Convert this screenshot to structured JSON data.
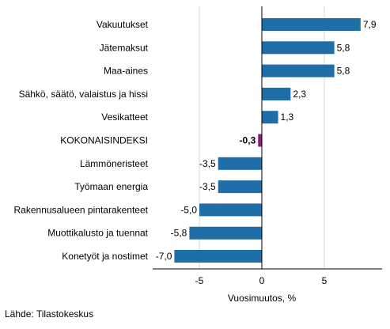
{
  "chart_data": {
    "type": "bar",
    "orientation": "horizontal",
    "categories": [
      "Vakuutukset",
      "Jätemaksut",
      "Maa-aines",
      "Sähkö, säätö, valaistus ja hissi",
      "Vesikatteet",
      "KOKONAISINDEKSI",
      "Lämmöneristeet",
      "Työmaan energia",
      "Rakennusalueen pintarakenteet",
      "Muottikalusto ja tuennat",
      "Konetyöt ja nostimet"
    ],
    "values": [
      7.9,
      5.8,
      5.8,
      2.3,
      1.3,
      -0.3,
      -3.5,
      -3.5,
      -5.0,
      -5.8,
      -7.0
    ],
    "value_labels": [
      "7,9",
      "5,8",
      "5,8",
      "2,3",
      "1,3",
      "-0,3",
      "-3,5",
      "-3,5",
      "-5,0",
      "-5,8",
      "-7,0"
    ],
    "highlight_index": 5,
    "xlabel": "Vuosimuutos, %",
    "xlim": [
      -9,
      9
    ],
    "xticks": [
      -5,
      0,
      5
    ],
    "xtick_labels": [
      "-5",
      "0",
      "5"
    ],
    "grid": true,
    "colors": {
      "bar": "#1f6ea8",
      "highlight": "#8b1a7a",
      "grid": "#d9d9d9"
    }
  },
  "source": "Lähde: Tilastokeskus"
}
